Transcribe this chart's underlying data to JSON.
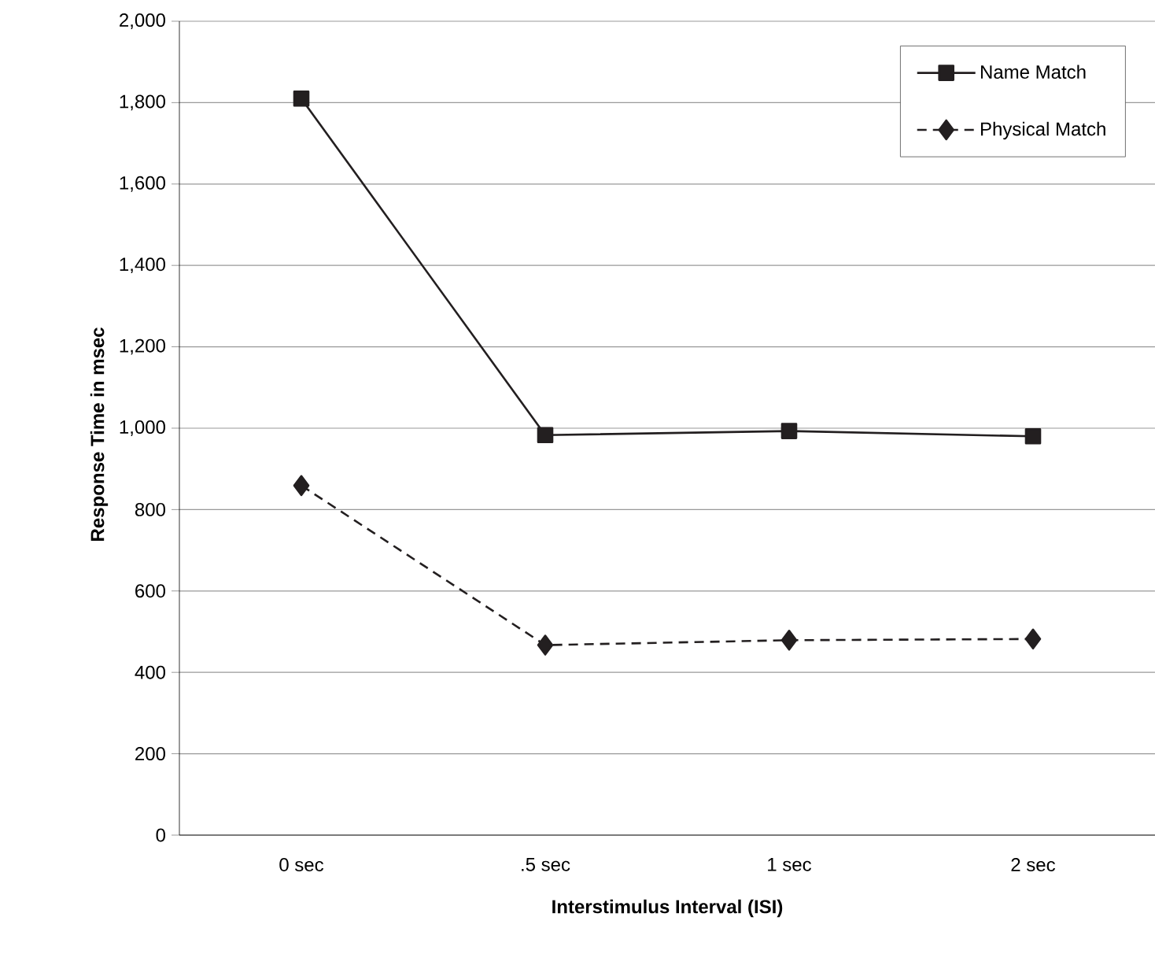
{
  "chart_data": {
    "type": "line",
    "xlabel": "Interstimulus Interval (ISI)",
    "ylabel": "Response Time in msec",
    "categories": [
      "0 sec",
      ".5 sec",
      "1 sec",
      "2 sec"
    ],
    "series": [
      {
        "name": "Name Match",
        "color": "#231f20",
        "values": [
          1810,
          983,
          993,
          980
        ],
        "marker": "square",
        "line_style": "solid"
      },
      {
        "name": "Physical Match",
        "color": "#231f20",
        "values": [
          859,
          467,
          479,
          482
        ],
        "marker": "diamond",
        "line_style": "dashed"
      }
    ],
    "ylim": [
      0,
      2000
    ],
    "yticks": [
      {
        "value": 0,
        "label": "0"
      },
      {
        "value": 200,
        "label": "200"
      },
      {
        "value": 400,
        "label": "400"
      },
      {
        "value": 600,
        "label": "600"
      },
      {
        "value": 800,
        "label": "800"
      },
      {
        "value": 1000,
        "label": "1,000"
      },
      {
        "value": 1200,
        "label": "1,200"
      },
      {
        "value": 1400,
        "label": "1,400"
      },
      {
        "value": 1600,
        "label": "1,600"
      },
      {
        "value": 1800,
        "label": "1,800"
      },
      {
        "value": 2000,
        "label": "2,000"
      }
    ],
    "grid": "y",
    "legend": "top right"
  }
}
